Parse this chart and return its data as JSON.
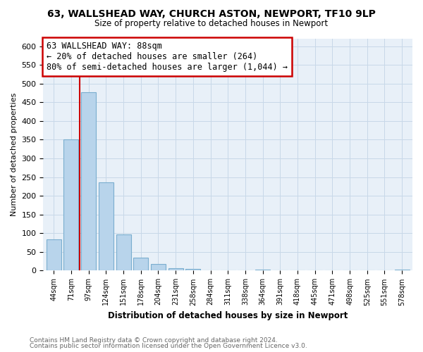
{
  "title": "63, WALLSHEAD WAY, CHURCH ASTON, NEWPORT, TF10 9LP",
  "subtitle": "Size of property relative to detached houses in Newport",
  "xlabel": "Distribution of detached houses by size in Newport",
  "ylabel": "Number of detached properties",
  "bar_labels": [
    "44sqm",
    "71sqm",
    "97sqm",
    "124sqm",
    "151sqm",
    "178sqm",
    "204sqm",
    "231sqm",
    "258sqm",
    "284sqm",
    "311sqm",
    "338sqm",
    "364sqm",
    "391sqm",
    "418sqm",
    "445sqm",
    "471sqm",
    "498sqm",
    "525sqm",
    "551sqm",
    "578sqm"
  ],
  "bar_values": [
    83,
    350,
    477,
    237,
    97,
    35,
    18,
    7,
    4,
    0,
    0,
    0,
    2,
    0,
    0,
    0,
    0,
    0,
    0,
    0,
    2
  ],
  "bar_color": "#b8d4eb",
  "bar_edge_color": "#7aaecf",
  "ylim": [
    0,
    620
  ],
  "yticks": [
    0,
    50,
    100,
    150,
    200,
    250,
    300,
    350,
    400,
    450,
    500,
    550,
    600
  ],
  "vline_x": 1.5,
  "vline_color": "#cc0000",
  "annotation_title": "63 WALLSHEAD WAY: 88sqm",
  "annotation_line1": "← 20% of detached houses are smaller (264)",
  "annotation_line2": "80% of semi-detached houses are larger (1,044) →",
  "annotation_box_color": "#ffffff",
  "annotation_box_edge": "#cc0000",
  "footer1": "Contains HM Land Registry data © Crown copyright and database right 2024.",
  "footer2": "Contains public sector information licensed under the Open Government Licence v3.0.",
  "background_color": "#ffffff",
  "grid_color": "#c8d8e8",
  "plot_bg_color": "#e8f0f8"
}
